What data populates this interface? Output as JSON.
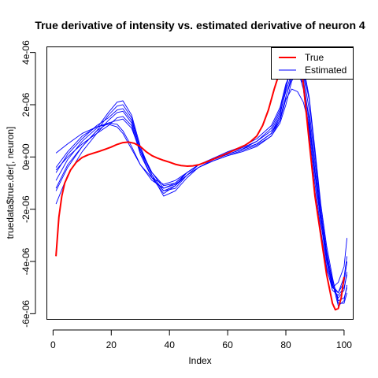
{
  "chart_data": {
    "type": "line",
    "title": "True derivative of intensity vs. estimated derivative of neuron 4",
    "xlabel": "Index",
    "ylabel": "truedata$true.der[, neuron]",
    "xlim": [
      -2,
      103
    ],
    "ylim": [
      -6.2e-06,
      4.2e-06
    ],
    "x_ticks": [
      0,
      20,
      40,
      60,
      80,
      100
    ],
    "x_tick_labels": [
      "0",
      "20",
      "40",
      "60",
      "80",
      "100"
    ],
    "y_ticks": [
      -6e-06,
      -4e-06,
      -2e-06,
      0,
      2e-06,
      4e-06
    ],
    "y_tick_labels": [
      "-6e-06",
      "-4e-06",
      "-2e-06",
      "0e+00",
      "2e-06",
      "4e-06"
    ],
    "grid": false,
    "legend": {
      "placement": "top-right",
      "entries": [
        {
          "label": "True",
          "color": "#ff0000"
        },
        {
          "label": "Estimated",
          "color": "#0000ff"
        }
      ]
    },
    "true_series": {
      "name": "True",
      "color": "#ff0000",
      "x": [
        1,
        2,
        3,
        4,
        6,
        8,
        10,
        12,
        14,
        16,
        18,
        20,
        22,
        24,
        26,
        28,
        30,
        32,
        34,
        36,
        38,
        40,
        42,
        44,
        46,
        48,
        50,
        52,
        54,
        56,
        58,
        60,
        62,
        64,
        66,
        68,
        70,
        72,
        74,
        76,
        78,
        80,
        82,
        84,
        85,
        86,
        88,
        90,
        92,
        94,
        96,
        97,
        98,
        99,
        100
      ],
      "y": [
        -3.8e-06,
        -2.3e-06,
        -1.5e-06,
        -1e-06,
        -5e-07,
        -2e-07,
        -2e-08,
        8e-08,
        1.5e-07,
        2.2e-07,
        3e-07,
        3.8e-07,
        4.8e-07,
        5.5e-07,
        5.7e-07,
        5.2e-07,
        4e-07,
        2e-07,
        5e-08,
        -5e-08,
        -1.3e-07,
        -2e-07,
        -2.8e-07,
        -3.3e-07,
        -3.5e-07,
        -3.4e-07,
        -3e-07,
        -2.2e-07,
        -1.3e-07,
        -4e-08,
        5e-08,
        1.5e-07,
        2.5e-07,
        3.5e-07,
        4.5e-07,
        6e-07,
        8e-07,
        1.2e-06,
        1.8e-06,
        2.6e-06,
        3.3e-06,
        3.9e-06,
        4.2e-06,
        4.1e-06,
        3.6e-06,
        2.8e-06,
        6e-07,
        -1.5e-06,
        -3e-06,
        -4.5e-06,
        -5.6e-06,
        -5.85e-06,
        -5.8e-06,
        -5.4e-06,
        -4.6e-06
      ]
    },
    "estimated_series": [
      {
        "name": "",
        "x": [
          1,
          5,
          10,
          15,
          19,
          22,
          24,
          27,
          30,
          34,
          38,
          42,
          46,
          50,
          55,
          60,
          65,
          70,
          75,
          78,
          80,
          82,
          84,
          86,
          88,
          90,
          92,
          94,
          96,
          98,
          100,
          101
        ],
        "y": [
          -1.8e-06,
          -7e-07,
          2e-07,
          9e-07,
          1.4e-06,
          1.7e-06,
          1.75e-06,
          1.3e-06,
          2e-07,
          -8e-07,
          -1.4e-06,
          -1.1e-06,
          -6e-07,
          -3e-07,
          -1e-07,
          1e-07,
          3e-07,
          5e-07,
          9e-07,
          1.6e-06,
          2.6e-06,
          3.6e-06,
          3.7e-06,
          2.8e-06,
          1e-06,
          -1e-06,
          -2.8e-06,
          -4.2e-06,
          -5.1e-06,
          -5.3e-06,
          -5e-06,
          -4.5e-06
        ]
      },
      {
        "name": "",
        "x": [
          1,
          5,
          10,
          15,
          19,
          22,
          24,
          27,
          30,
          34,
          38,
          42,
          46,
          50,
          55,
          60,
          65,
          70,
          75,
          78,
          80,
          82,
          84,
          86,
          88,
          90,
          92,
          94,
          96,
          98,
          100,
          101
        ],
        "y": [
          -1.2e-06,
          -3e-07,
          4e-07,
          1e-06,
          1.6e-06,
          1.95e-06,
          2e-06,
          1.5e-06,
          3e-07,
          -7e-07,
          -1.3e-06,
          -1.2e-06,
          -7e-07,
          -3e-07,
          -5e-08,
          2e-07,
          4e-07,
          7e-07,
          1.2e-06,
          1.9e-06,
          2.8e-06,
          3.3e-06,
          3.4e-06,
          2.6e-06,
          8e-07,
          -1.3e-06,
          -3e-06,
          -4.3e-06,
          -5e-06,
          -5.2e-06,
          -4.6e-06,
          -3.8e-06
        ]
      },
      {
        "name": "",
        "x": [
          1,
          5,
          10,
          15,
          19,
          22,
          24,
          27,
          30,
          34,
          38,
          42,
          46,
          50,
          55,
          60,
          65,
          70,
          75,
          78,
          80,
          82,
          84,
          86,
          88,
          90,
          92,
          94,
          96,
          98,
          100,
          101
        ],
        "y": [
          -9e-07,
          -1e-07,
          6e-07,
          1.1e-06,
          1.7e-06,
          2.1e-06,
          2.15e-06,
          1.6e-06,
          4e-07,
          -7e-07,
          -1.5e-06,
          -1.3e-06,
          -8e-07,
          -4e-07,
          -1e-07,
          1e-07,
          3e-07,
          6e-07,
          1.1e-06,
          1.8e-06,
          2.7e-06,
          3.4e-06,
          3.6e-06,
          3e-06,
          1.3e-06,
          -7e-07,
          -2.5e-06,
          -3.9e-06,
          -4.9e-06,
          -5.4e-06,
          -5.1e-06,
          -4.4e-06
        ]
      },
      {
        "name": "",
        "x": [
          1,
          5,
          10,
          15,
          19,
          22,
          24,
          27,
          30,
          34,
          38,
          42,
          46,
          50,
          55,
          60,
          65,
          70,
          75,
          78,
          80,
          82,
          84,
          86,
          88,
          90,
          92,
          94,
          96,
          98,
          100,
          101
        ],
        "y": [
          -6e-07,
          1e-07,
          7e-07,
          1.2e-06,
          1.5e-06,
          1.8e-06,
          1.85e-06,
          1.4e-06,
          3e-07,
          -6e-07,
          -1.2e-06,
          -1e-06,
          -6e-07,
          -3e-07,
          -8e-08,
          1.5e-07,
          3.5e-07,
          6e-07,
          1e-06,
          1.7e-06,
          2.5e-06,
          3.2e-06,
          3.5e-06,
          3.2e-06,
          1.8e-06,
          -2e-07,
          -2.2e-06,
          -3.7e-06,
          -4.7e-06,
          -5.5e-06,
          -5.4e-06,
          -5e-06
        ]
      },
      {
        "name": "",
        "x": [
          1,
          5,
          10,
          15,
          19,
          22,
          24,
          27,
          30,
          34,
          38,
          42,
          46,
          50,
          55,
          60,
          65,
          70,
          75,
          78,
          80,
          82,
          84,
          86,
          88,
          90,
          92,
          94,
          96,
          98,
          100,
          101
        ],
        "y": [
          -4e-07,
          2e-07,
          8e-07,
          1.15e-06,
          1.3e-06,
          1.4e-06,
          1.45e-06,
          1.1e-06,
          2e-07,
          -6e-07,
          -1.1e-06,
          -1e-06,
          -6e-07,
          -3e-07,
          -1e-07,
          1e-07,
          3e-07,
          5e-07,
          9e-07,
          1.5e-06,
          2.3e-06,
          3.1e-06,
          3.6e-06,
          3.5e-06,
          2.3e-06,
          3e-07,
          -1.8e-06,
          -3.4e-06,
          -4.6e-06,
          -5.6e-06,
          -5.6e-06,
          -5.2e-06
        ]
      },
      {
        "name": "",
        "x": [
          1,
          5,
          10,
          15,
          19,
          22,
          24,
          27,
          30,
          34,
          38,
          42,
          46,
          50,
          55,
          60,
          65,
          70,
          75,
          78,
          80,
          82,
          84,
          86,
          88,
          90,
          92,
          94,
          96,
          98,
          100,
          101
        ],
        "y": [
          1.5e-07,
          5e-07,
          9e-07,
          1.15e-06,
          1.25e-06,
          1.15e-06,
          9e-07,
          3e-07,
          -3e-07,
          -8e-07,
          -1.05e-06,
          -9e-07,
          -6e-07,
          -3e-07,
          -5e-08,
          1e-07,
          3e-07,
          5e-07,
          9e-07,
          1.4e-06,
          2.2e-06,
          2.6e-06,
          2.5e-06,
          2.1e-06,
          1.2e-06,
          -6e-07,
          -2.5e-06,
          -4e-06,
          -5e-06,
          -4.8e-06,
          -4.2e-06,
          -3.1e-06
        ]
      },
      {
        "name": "",
        "x": [
          1,
          5,
          10,
          15,
          19,
          22,
          24,
          27,
          30,
          34,
          38,
          42,
          46,
          50,
          55,
          60,
          65,
          70,
          75,
          78,
          80,
          82,
          84,
          86,
          88,
          90,
          92,
          94,
          96,
          98,
          100,
          101
        ],
        "y": [
          -1.3e-06,
          -4e-07,
          4e-07,
          1e-06,
          1.3e-06,
          1.25e-06,
          1e-06,
          4e-07,
          -3e-07,
          -9e-07,
          -1.2e-06,
          -1.05e-06,
          -7e-07,
          -4e-07,
          -1.5e-07,
          5e-08,
          2.5e-07,
          4.5e-07,
          8e-07,
          1.3e-06,
          2e-06,
          2.9e-06,
          3.3e-06,
          3.3e-06,
          2.2e-06,
          1e-07,
          -2e-06,
          -3.6e-06,
          -4.8e-06,
          -5.7e-06,
          -5.5e-06,
          -4.9e-06
        ]
      },
      {
        "name": "",
        "x": [
          1,
          5,
          10,
          15,
          19,
          22,
          24,
          27,
          30,
          34,
          38,
          42,
          46,
          50,
          55,
          60,
          65,
          70,
          75,
          78,
          80,
          82,
          84,
          86,
          88,
          90,
          92,
          94,
          96,
          98,
          100,
          101
        ],
        "y": [
          -5e-07,
          0,
          5e-07,
          9e-07,
          1.2e-06,
          1.5e-06,
          1.55e-06,
          1.2e-06,
          1e-07,
          -8e-07,
          -1.3e-06,
          -1.1e-06,
          -7e-07,
          -4e-07,
          -1.5e-07,
          5e-08,
          2e-07,
          4e-07,
          8e-07,
          1.4e-06,
          2.3e-06,
          3e-06,
          3.2e-06,
          2.8e-06,
          1.5e-06,
          -5e-07,
          -2.3e-06,
          -3.8e-06,
          -4.9e-06,
          -5.2e-06,
          -4.8e-06,
          -4e-06
        ]
      }
    ]
  }
}
